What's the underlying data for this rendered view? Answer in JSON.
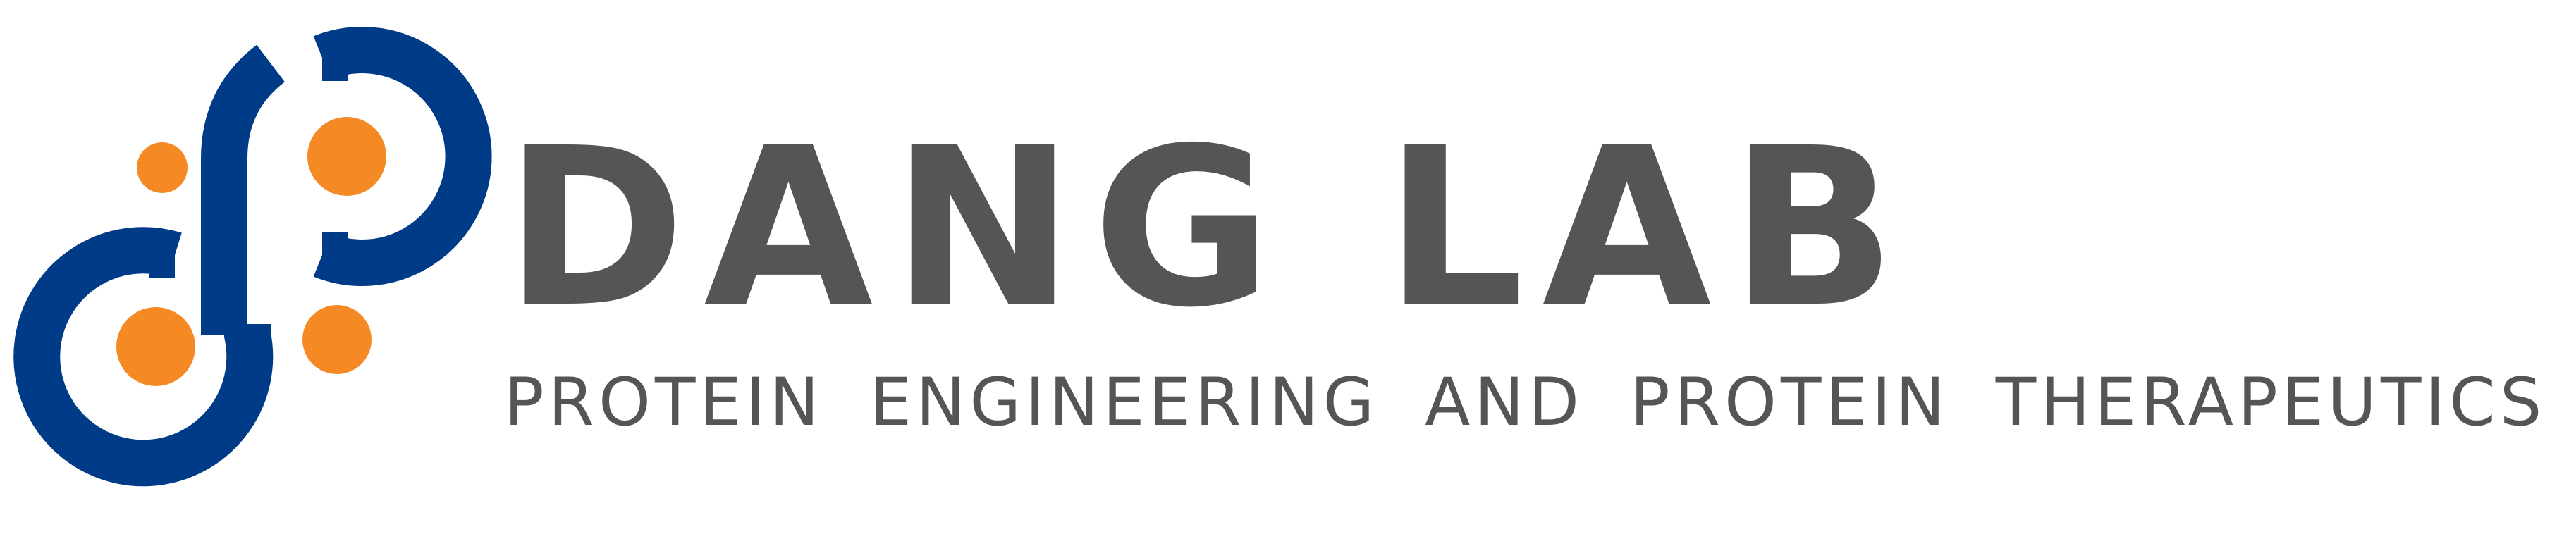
{
  "logo": {
    "title": "DANG LAB",
    "subtitle": "PROTEIN ENGINEERING AND PROTEIN THERAPEUTICS"
  },
  "colors": {
    "blue": "#003B87",
    "orange": "#F58A25",
    "text_gray": "#555555",
    "background": "#FFFFFF"
  }
}
